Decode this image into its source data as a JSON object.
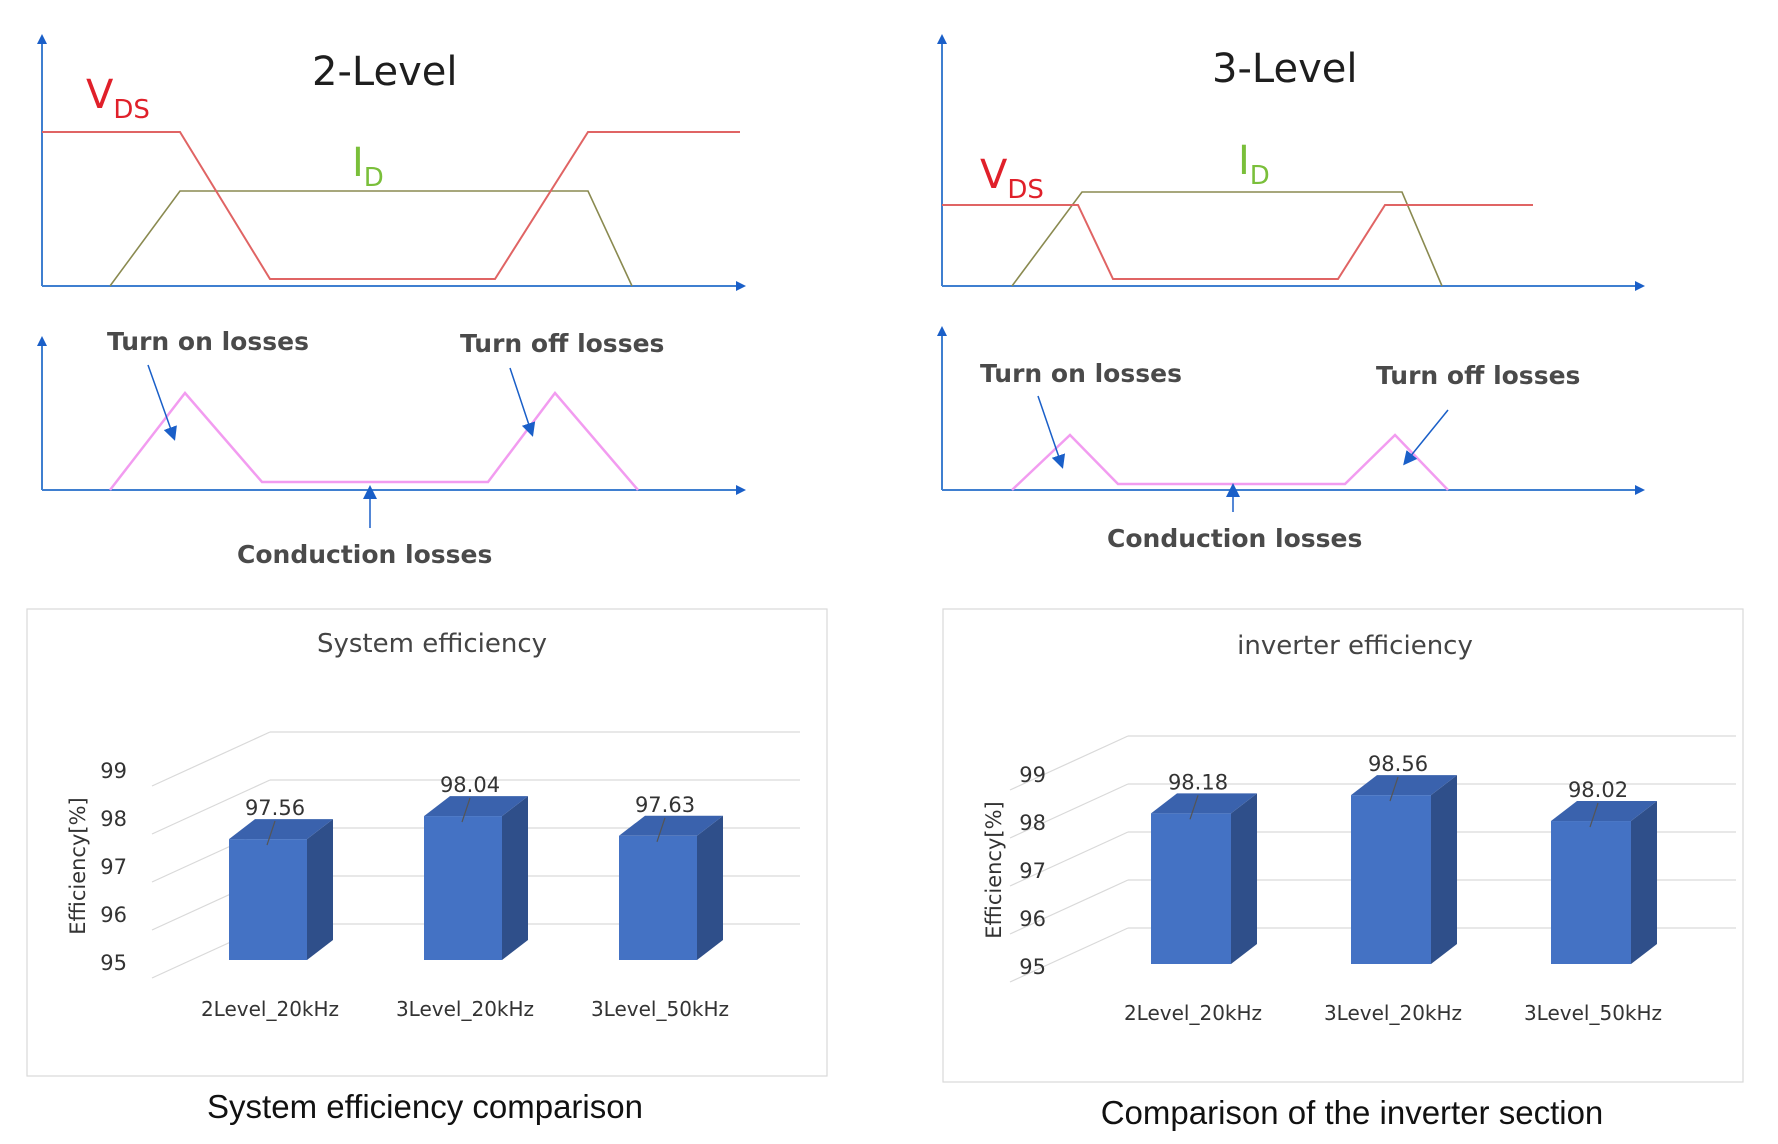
{
  "colors": {
    "axis": "#3f7fd0",
    "vds": "#e06464",
    "id": "#8a8a50",
    "loss": "#f29cf0",
    "bar_front": "#4472c4",
    "bar_side": "#2f4f8a",
    "bar_top": "#3a62ad",
    "grid": "#d9d9d9"
  },
  "waveforms": {
    "left": {
      "title": "2-Level",
      "vds_label": "V",
      "vds_sub": "DS",
      "id_label": "I",
      "id_sub": "D",
      "turn_on": "Turn on losses",
      "turn_off": "Turn off losses",
      "conduction": "Conduction losses"
    },
    "right": {
      "title": "3-Level",
      "vds_label": "V",
      "vds_sub": "DS",
      "id_label": "I",
      "id_sub": "D",
      "turn_on": "Turn on losses",
      "turn_off": "Turn off losses",
      "conduction": "Conduction losses"
    }
  },
  "chart_data": [
    {
      "type": "bar",
      "title": "System efficiency",
      "caption": "System efficiency comparison",
      "ylabel": "Efficiency[%]",
      "xlabel": "",
      "ylim": [
        95,
        99
      ],
      "yticks": [
        "95",
        "96",
        "97",
        "98",
        "99"
      ],
      "categories": [
        "2Level_20kHz",
        "3Level_20kHz",
        "3Level_50kHz"
      ],
      "values": [
        97.56,
        98.04,
        97.63
      ],
      "value_labels": [
        "97.56",
        "98.04",
        "97.63"
      ],
      "grid": true,
      "style": "3d-column"
    },
    {
      "type": "bar",
      "title": "inverter efficiency",
      "caption": "Comparison of the inverter section",
      "ylabel": "Efficiency[%]",
      "xlabel": "",
      "ylim": [
        95,
        99
      ],
      "yticks": [
        "95",
        "96",
        "97",
        "98",
        "99"
      ],
      "categories": [
        "2Level_20kHz",
        "3Level_20kHz",
        "3Level_50kHz"
      ],
      "values": [
        98.18,
        98.56,
        98.02
      ],
      "value_labels": [
        "98.18",
        "98.56",
        "98.02"
      ],
      "grid": true,
      "style": "3d-column"
    }
  ]
}
